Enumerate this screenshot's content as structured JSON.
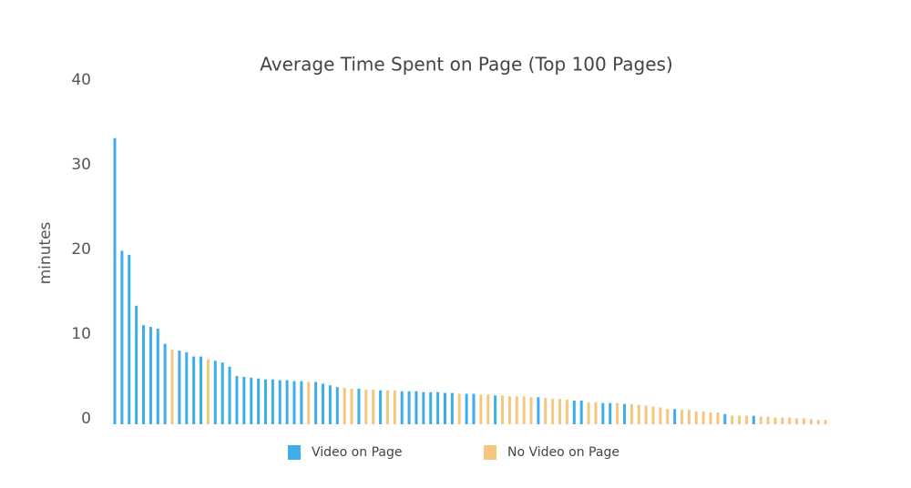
{
  "chart_data": {
    "type": "bar",
    "title": "Average Time Spent on Page (Top 100 Pages)",
    "y_label": "minutes",
    "ylim": [
      0,
      40
    ],
    "yticks": [
      0,
      10,
      20,
      30,
      40
    ],
    "grid": false,
    "legend": "bottom",
    "series": [
      {
        "name": "Video on Page",
        "color": "#3daee9",
        "values": [
          33.8,
          20.5,
          20,
          14,
          11.7,
          11.5,
          11.3,
          9.5,
          null,
          8.7,
          8.5,
          8,
          8,
          null,
          7.5,
          7.3,
          6.8,
          5.7,
          5.6,
          5.5,
          5.4,
          5.3,
          5.3,
          5.2,
          5.2,
          5.1,
          5.1,
          null,
          5,
          4.8,
          4.6,
          4.4,
          null,
          null,
          4.2,
          null,
          null,
          4,
          null,
          null,
          3.9,
          3.9,
          3.9,
          3.8,
          3.8,
          3.8,
          3.7,
          3.7,
          null,
          3.6,
          3.6,
          null,
          null,
          3.4,
          null,
          null,
          null,
          null,
          null,
          3.2,
          null,
          null,
          null,
          null,
          2.8,
          2.8,
          null,
          null,
          2.5,
          2.5,
          null,
          2.4,
          null,
          null,
          null,
          null,
          null,
          null,
          1.8,
          null,
          null,
          null,
          null,
          null,
          null,
          1.2,
          null,
          null,
          null,
          1.0,
          null,
          null,
          null,
          null,
          null,
          null,
          null,
          null,
          null,
          null
        ]
      },
      {
        "name": "No Video on Page",
        "color": "#f5c77e",
        "values": [
          null,
          null,
          null,
          null,
          null,
          null,
          null,
          null,
          8.8,
          null,
          null,
          null,
          null,
          7.7,
          null,
          null,
          null,
          null,
          null,
          null,
          null,
          null,
          null,
          null,
          null,
          null,
          null,
          5.0,
          null,
          null,
          null,
          null,
          4.3,
          4.2,
          null,
          4.1,
          4.1,
          null,
          4.0,
          4.0,
          null,
          null,
          null,
          null,
          null,
          null,
          null,
          null,
          3.6,
          null,
          null,
          3.5,
          3.5,
          null,
          3.4,
          3.3,
          3.3,
          3.3,
          3.2,
          null,
          3.1,
          3.0,
          3.0,
          2.9,
          null,
          null,
          2.6,
          2.6,
          null,
          null,
          2.5,
          null,
          2.4,
          2.3,
          2.2,
          2.1,
          2.0,
          1.8,
          null,
          1.7,
          1.7,
          1.5,
          1.5,
          1.4,
          1.4,
          null,
          1.0,
          1.0,
          1.0,
          null,
          0.9,
          0.9,
          0.8,
          0.8,
          0.8,
          0.7,
          0.7,
          0.6,
          0.5,
          0.5
        ]
      }
    ]
  }
}
